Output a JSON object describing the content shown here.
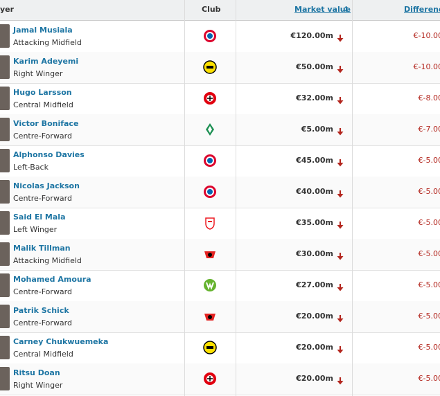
{
  "header": {
    "columns": [
      "yer",
      "Club",
      "Market value",
      "Differenc"
    ]
  },
  "rows": [
    {
      "name": "Jamal Musiala",
      "position": "Attacking Midfield",
      "market_value": "€120.00m",
      "difference": "€-10.00"
    },
    {
      "name": "Karim Adeyemi",
      "position": "Right Winger",
      "market_value": "€50.00m",
      "difference": "€-10.00"
    },
    {
      "name": "Hugo Larsson",
      "position": "Central Midfield",
      "market_value": "€32.00m",
      "difference": "€-8.00"
    },
    {
      "name": "Victor Boniface",
      "position": "Centre-Forward",
      "market_value": "€5.00m",
      "difference": "€-7.00"
    },
    {
      "name": "Alphonso Davies",
      "position": "Left-Back",
      "market_value": "€45.00m",
      "difference": "€-5.00"
    },
    {
      "name": "Nicolas Jackson",
      "position": "Centre-Forward",
      "market_value": "€40.00m",
      "difference": "€-5.00"
    },
    {
      "name": "Said El Mala",
      "position": "Left Winger",
      "market_value": "€35.00m",
      "difference": "€-5.00"
    },
    {
      "name": "Malik Tillman",
      "position": "Attacking Midfield",
      "market_value": "€30.00m",
      "difference": "€-5.00"
    },
    {
      "name": "Mohamed Amoura",
      "position": "Centre-Forward",
      "market_value": "€27.00m",
      "difference": "€-5.00"
    },
    {
      "name": "Patrik Schick",
      "position": "Centre-Forward",
      "market_value": "€20.00m",
      "difference": "€-5.00"
    },
    {
      "name": "Carney Chukwuemeka",
      "position": "Central Midfield",
      "market_value": "€20.00m",
      "difference": "€-5.00"
    },
    {
      "name": "Ritsu Doan",
      "position": "Right Winger",
      "market_value": "€20.00m",
      "difference": "€-5.00"
    }
  ]
}
